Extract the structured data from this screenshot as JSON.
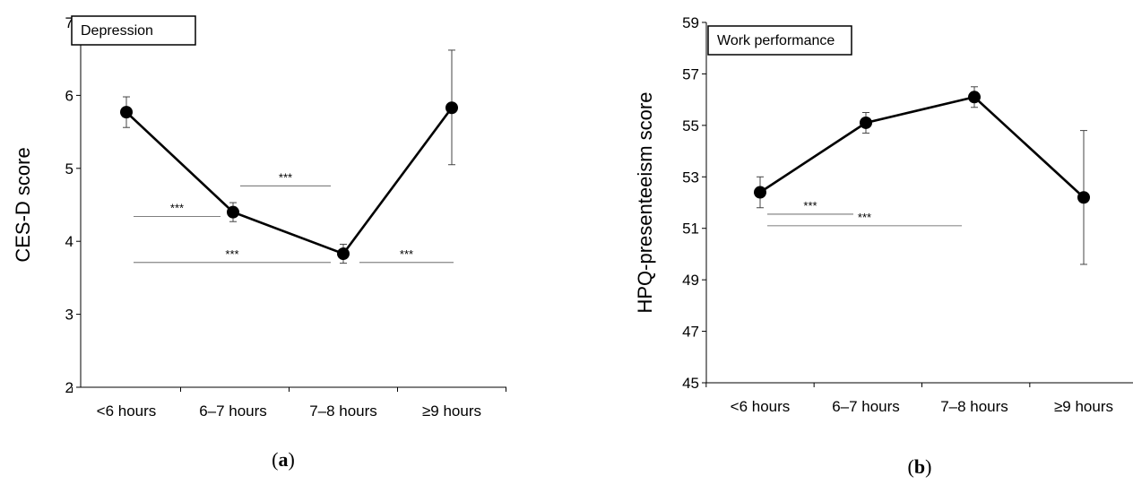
{
  "chart_data": [
    {
      "type": "line",
      "panel_label": {
        "open": "(",
        "letter": "a",
        "close": ")"
      },
      "legend_box": "Depression",
      "ylabel": "CES-D score",
      "categories": [
        "<6 hours",
        "6–7 hours",
        "7–8 hours",
        "≥9 hours"
      ],
      "ylim": [
        2,
        7
      ],
      "yticks": [
        2,
        3,
        4,
        5,
        6,
        7
      ],
      "series": [
        {
          "values": [
            5.77,
            4.4,
            3.83,
            5.83
          ],
          "error_low": [
            5.56,
            4.27,
            3.7,
            5.05
          ],
          "error_high": [
            5.98,
            4.53,
            3.96,
            6.62
          ]
        }
      ],
      "significance": [
        {
          "from": 0,
          "to": 1,
          "y": 4.34,
          "label": "***"
        },
        {
          "from": 1,
          "to": 2,
          "y": 4.76,
          "label": "***"
        },
        {
          "from": 0,
          "to": 2,
          "y": 3.71,
          "label": "***"
        },
        {
          "from": 2,
          "to": 3,
          "y": 3.71,
          "label": "***"
        }
      ]
    },
    {
      "type": "line",
      "panel_label": {
        "open": "(",
        "letter": "b",
        "close": ")"
      },
      "legend_box": "Work performance",
      "ylabel": "HPQ-presenteeism score",
      "categories": [
        "<6 hours",
        "6–7 hours",
        "7–8 hours",
        "≥9 hours"
      ],
      "ylim": [
        45,
        59
      ],
      "yticks": [
        45,
        47,
        49,
        51,
        53,
        55,
        57,
        59
      ],
      "series": [
        {
          "values": [
            52.4,
            55.1,
            56.1,
            52.2
          ],
          "error_low": [
            51.8,
            54.7,
            55.7,
            49.6
          ],
          "error_high": [
            53.0,
            55.5,
            56.5,
            54.8
          ]
        }
      ],
      "significance": [
        {
          "from": 0,
          "to": 1,
          "y": 51.55,
          "label": "***"
        },
        {
          "from": 0,
          "to": 2,
          "y": 51.1,
          "label": "***"
        }
      ]
    }
  ]
}
